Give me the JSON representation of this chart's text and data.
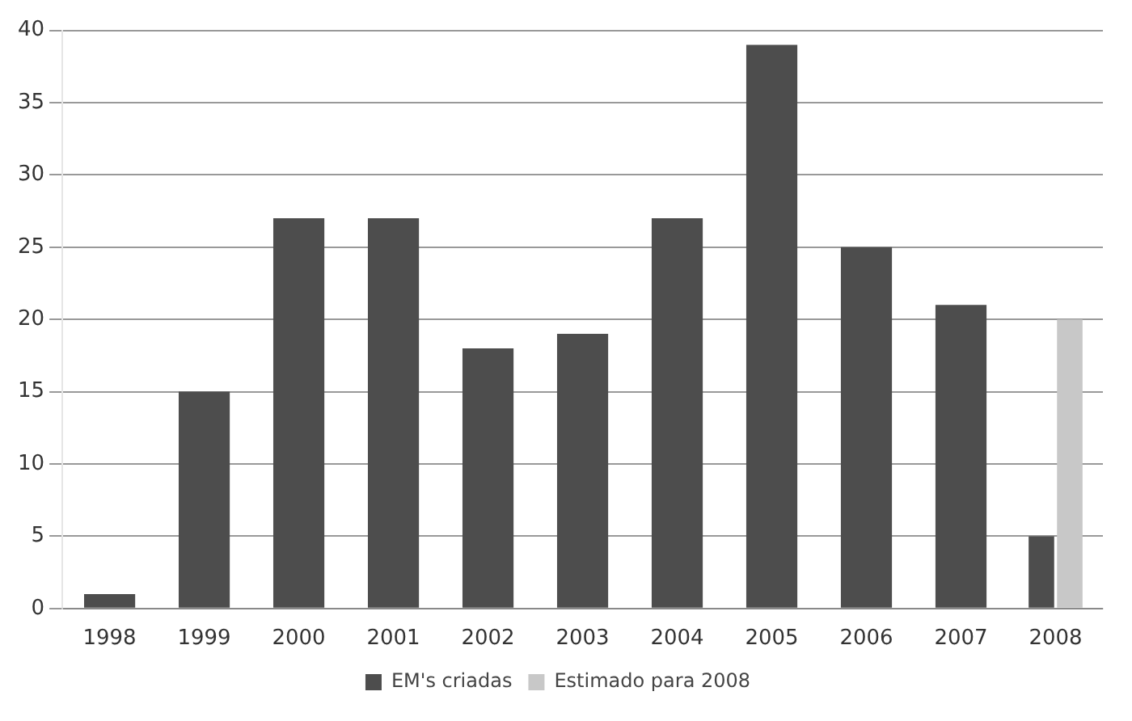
{
  "chart_data": {
    "type": "bar",
    "categories": [
      "1998",
      "1999",
      "2000",
      "2001",
      "2002",
      "2003",
      "2004",
      "2005",
      "2006",
      "2007",
      "2008"
    ],
    "series": [
      {
        "name": "EM's criadas",
        "color": "#4d4d4d",
        "values": [
          1,
          15,
          27,
          27,
          18,
          19,
          27,
          39,
          25,
          21,
          5
        ]
      },
      {
        "name": "Estimado para 2008",
        "color": "#c8c8c8",
        "values": [
          null,
          null,
          null,
          null,
          null,
          null,
          null,
          null,
          null,
          null,
          20
        ]
      }
    ],
    "ylim": [
      0,
      40
    ],
    "yticks": [
      0,
      5,
      10,
      15,
      20,
      25,
      30,
      35,
      40
    ],
    "grid": "y",
    "legend": "bottom"
  }
}
